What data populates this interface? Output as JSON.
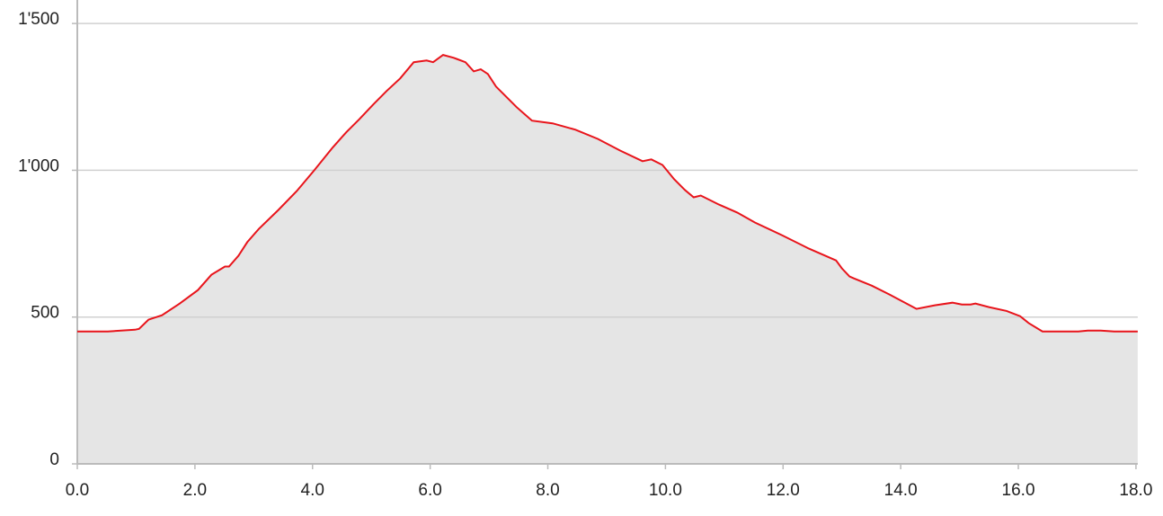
{
  "chart_data": {
    "type": "area",
    "x": [
      0,
      0.52,
      0.98,
      1.05,
      1.21,
      1.44,
      1.74,
      2.05,
      2.28,
      2.51,
      2.58,
      2.74,
      2.89,
      3.09,
      3.42,
      3.73,
      4.03,
      4.34,
      4.57,
      4.8,
      5.03,
      5.26,
      5.49,
      5.72,
      5.94,
      6.05,
      6.22,
      6.4,
      6.6,
      6.74,
      6.86,
      6.98,
      7.12,
      7.24,
      7.47,
      7.73,
      8.08,
      8.47,
      8.85,
      9.23,
      9.61,
      9.76,
      9.95,
      10.15,
      10.33,
      10.48,
      10.6,
      10.91,
      11.22,
      11.52,
      11.98,
      12.44,
      12.9,
      13.0,
      13.13,
      13.2,
      13.51,
      13.81,
      14.27,
      14.58,
      14.88,
      15.04,
      15.19,
      15.27,
      15.5,
      15.8,
      16.03,
      16.18,
      16.41,
      16.72,
      17.02,
      17.18,
      17.4,
      17.63,
      18.03
    ],
    "values": [
      451,
      451,
      457,
      460,
      491,
      506,
      546,
      592,
      644,
      672,
      672,
      709,
      755,
      801,
      865,
      929,
      1000,
      1077,
      1129,
      1175,
      1224,
      1270,
      1313,
      1368,
      1374,
      1368,
      1393,
      1383,
      1368,
      1337,
      1344,
      1328,
      1285,
      1261,
      1215,
      1169,
      1160,
      1138,
      1107,
      1067,
      1031,
      1037,
      1018,
      969,
      933,
      908,
      914,
      883,
      856,
      822,
      779,
      733,
      693,
      666,
      638,
      632,
      607,
      577,
      528,
      540,
      549,
      543,
      543,
      546,
      534,
      521,
      503,
      479,
      451,
      451,
      451,
      454,
      454,
      451,
      451
    ],
    "color": "#e8141b",
    "fill": "#e5e5e5",
    "xlim": [
      0,
      18.03
    ],
    "ylim": [
      0,
      1580
    ],
    "xticks": [
      {
        "value": 0,
        "label": "0.0"
      },
      {
        "value": 2,
        "label": "2.0"
      },
      {
        "value": 4,
        "label": "4.0"
      },
      {
        "value": 6,
        "label": "6.0"
      },
      {
        "value": 8,
        "label": "8.0"
      },
      {
        "value": 10,
        "label": "10.0"
      },
      {
        "value": 12,
        "label": "12.0"
      },
      {
        "value": 14,
        "label": "14.0"
      },
      {
        "value": 16,
        "label": "16.0"
      },
      {
        "value": 18,
        "label": "18.0"
      }
    ],
    "yticks": [
      0,
      500,
      {
        "value": 1000,
        "label": "1'000"
      },
      {
        "value": 1500,
        "label": "1'500"
      }
    ],
    "grid": true
  }
}
